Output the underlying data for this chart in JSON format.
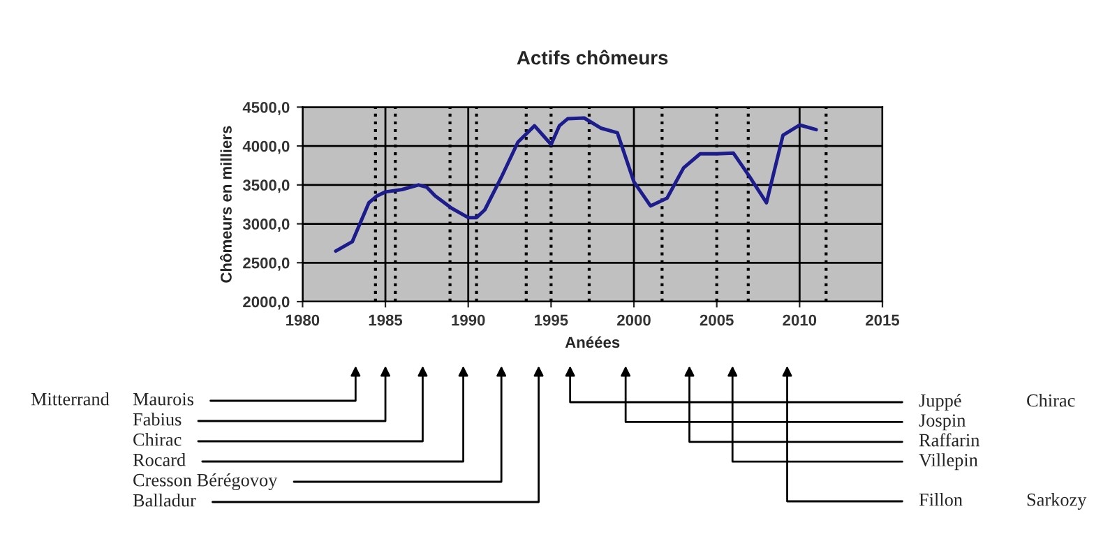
{
  "chart_data": {
    "type": "line",
    "title": "Actifs chômeurs",
    "xlabel": "Anéées",
    "ylabel": "Chômeurs en milliers",
    "x": [
      1982,
      1983,
      1984,
      1984.5,
      1985,
      1986,
      1987,
      1987.5,
      1988,
      1989,
      1990,
      1990.5,
      1991,
      1992,
      1993,
      1994,
      1994.5,
      1995,
      1995.5,
      1996,
      1997,
      1998,
      1999,
      2000,
      2001,
      2002,
      2003,
      2004,
      2005,
      2006,
      2007,
      2008,
      2009,
      2010,
      2011
    ],
    "series": [
      {
        "color": "#1c1c8c",
        "values": [
          2650,
          2770,
          3270,
          3360,
          3410,
          3440,
          3500,
          3470,
          3360,
          3200,
          3080,
          3080,
          3180,
          3600,
          4050,
          4260,
          4140,
          4020,
          4260,
          4350,
          4360,
          4230,
          4170,
          3540,
          3230,
          3330,
          3720,
          3900,
          3900,
          3910,
          3600,
          3270,
          4140,
          4270,
          4210
        ]
      }
    ],
    "xlim": [
      1980,
      2015
    ],
    "xticks": [
      1980,
      1985,
      1990,
      1995,
      2000,
      2005,
      2010,
      2015
    ],
    "ylim": [
      2000,
      4500
    ],
    "yticks": [
      {
        "value": 2000,
        "label": "2000,0"
      },
      {
        "value": 2500,
        "label": "2500,0"
      },
      {
        "value": 3000,
        "label": "3000,0"
      },
      {
        "value": 3500,
        "label": "3500,0"
      },
      {
        "value": 4000,
        "label": "4000,0"
      },
      {
        "value": 4500,
        "label": "4500,0"
      }
    ],
    "grid": true,
    "marker": "none",
    "line_style": "solid",
    "ref_lines": [
      {
        "axis": "x",
        "value": 1984.4,
        "color": "#000000",
        "line_style": "dotted"
      },
      {
        "axis": "x",
        "value": 1985.6,
        "color": "#000000",
        "line_style": "dotted"
      },
      {
        "axis": "x",
        "value": 1988.9,
        "color": "#000000",
        "line_style": "dotted"
      },
      {
        "axis": "x",
        "value": 1990.5,
        "color": "#000000",
        "line_style": "dotted"
      },
      {
        "axis": "x",
        "value": 1993.5,
        "color": "#000000",
        "line_style": "dotted"
      },
      {
        "axis": "x",
        "value": 1995.0,
        "color": "#000000",
        "line_style": "dotted"
      },
      {
        "axis": "x",
        "value": 1997.3,
        "color": "#000000",
        "line_style": "dotted"
      },
      {
        "axis": "x",
        "value": 2001.7,
        "color": "#000000",
        "line_style": "dotted"
      },
      {
        "axis": "x",
        "value": 2005.0,
        "color": "#000000",
        "line_style": "dotted"
      },
      {
        "axis": "x",
        "value": 2006.9,
        "color": "#000000",
        "line_style": "dotted"
      },
      {
        "axis": "x",
        "value": 2011.6,
        "color": "#000000",
        "line_style": "dotted"
      }
    ],
    "annotations": [
      "Maurois",
      "Fabius",
      "Chirac",
      "Rocard",
      "Cresson Bérégovoy",
      "Balladur",
      "Juppé",
      "Jospin",
      "Raffarin",
      "Villepin",
      "Fillon",
      "Mitterrand",
      "Chirac",
      "Sarkozy"
    ]
  }
}
